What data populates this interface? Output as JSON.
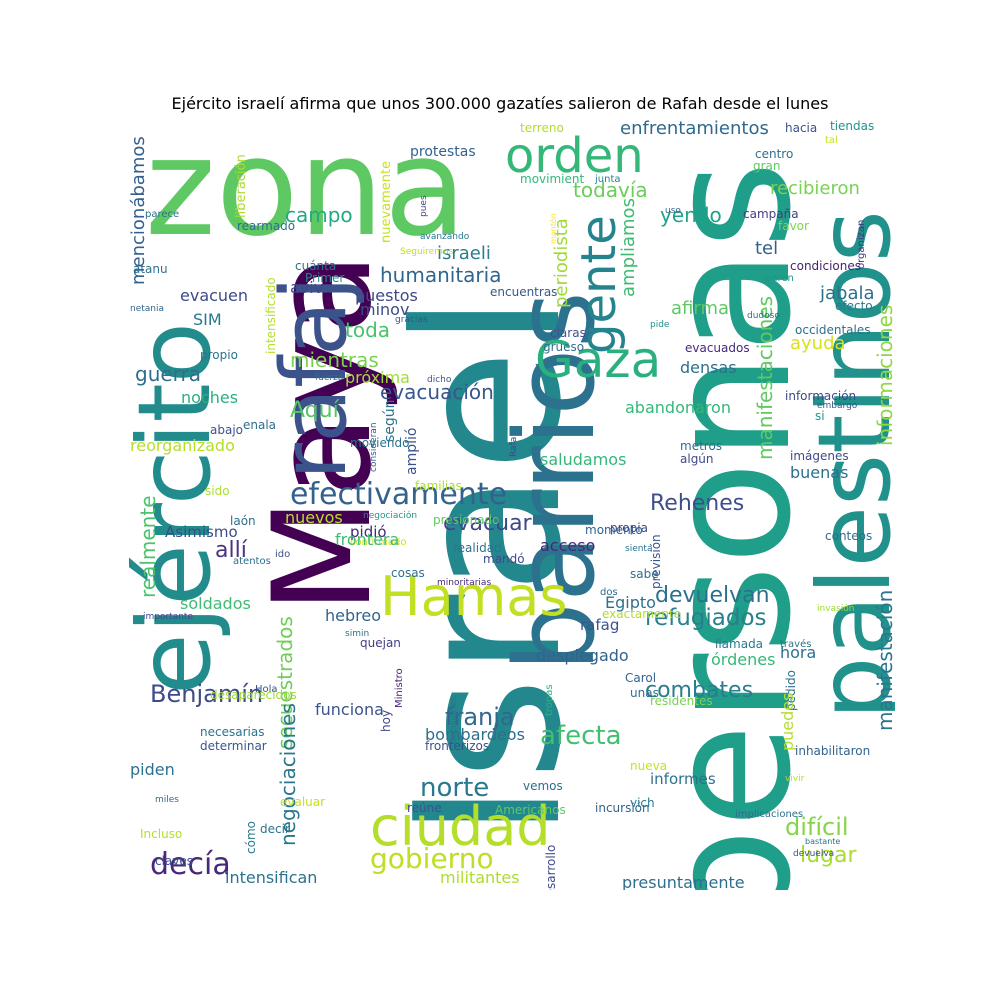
{
  "title": "Ejército israelí afirma que unos 300.000 gazatíes salieron de Rafah desde el lunes",
  "words": [
    {
      "text": "Israel",
      "color": "#23888e"
    },
    {
      "text": "personas",
      "color": "#1f9e89"
    },
    {
      "text": "zona",
      "color": "#5ec962"
    },
    {
      "text": "Maya",
      "color": "#440154"
    },
    {
      "text": "barrios",
      "color": "#2c728e"
    },
    {
      "text": "palestinos",
      "color": "#21918c"
    },
    {
      "text": "ejército",
      "color": "#228c8d"
    },
    {
      "text": "rafaj",
      "color": "#3b528b"
    },
    {
      "text": "ciudad",
      "color": "#b5de2b"
    },
    {
      "text": "Hamas",
      "color": "#c2df23"
    },
    {
      "text": "Gaza",
      "color": "#2ab07f"
    },
    {
      "text": "orden",
      "color": "#35b779"
    },
    {
      "text": "gente",
      "color": "#25838e"
    },
    {
      "text": "efectivamente",
      "color": "#33628d"
    },
    {
      "text": "decía",
      "color": "#482979"
    },
    {
      "text": "gobierno",
      "color": "#bddf26"
    },
    {
      "text": "Benjamín",
      "color": "#3e4a89"
    },
    {
      "text": "afecta",
      "color": "#42be71"
    },
    {
      "text": "norte",
      "color": "#2a788e"
    },
    {
      "text": "franja",
      "color": "#31688e"
    },
    {
      "text": "combates",
      "color": "#287d8e"
    },
    {
      "text": "refugiados",
      "color": "#27808e"
    },
    {
      "text": "devuelvan",
      "color": "#2d708e"
    },
    {
      "text": "Rehenes",
      "color": "#3d4e8a"
    },
    {
      "text": "evacuar",
      "color": "#3f4788"
    },
    {
      "text": "allí",
      "color": "#463480"
    },
    {
      "text": "difícil",
      "color": "#86d549"
    },
    {
      "text": "lugar",
      "color": "#a8db34"
    },
    {
      "text": "Aquí",
      "color": "#54c568"
    },
    {
      "text": "guerra",
      "color": "#2e6e8e"
    },
    {
      "text": "mientras",
      "color": "#7ad151"
    },
    {
      "text": "toda",
      "color": "#4ac16d"
    },
    {
      "text": "evacuación",
      "color": "#39568c"
    },
    {
      "text": "todavía",
      "color": "#6ccd5a"
    },
    {
      "text": "campo",
      "color": "#22a884"
    },
    {
      "text": "humanitaria",
      "color": "#32658e"
    },
    {
      "text": "yendo",
      "color": "#1fa287"
    },
    {
      "text": "israeli",
      "color": "#287c8e"
    },
    {
      "text": "periodista",
      "color": "#a0da39"
    },
    {
      "text": "ampliamos",
      "color": "#3fbc73"
    },
    {
      "text": "manifestaciones",
      "color": "#60ca60"
    },
    {
      "text": "informaciones",
      "color": "#90d743"
    },
    {
      "text": "manifestación",
      "color": "#2b758e"
    },
    {
      "text": "secuestrados",
      "color": "#6ece58"
    },
    {
      "text": "realmente",
      "color": "#4cc26c"
    },
    {
      "text": "mencionábamos",
      "color": "#355f8d"
    },
    {
      "text": "enfrentamientos",
      "color": "#30698e"
    },
    {
      "text": "recibieron",
      "color": "#7ad151"
    },
    {
      "text": "protestas",
      "color": "#33638d"
    },
    {
      "text": "hacia",
      "color": "#3b528b"
    },
    {
      "text": "tiendas",
      "color": "#1f958b"
    },
    {
      "text": "terreno",
      "color": "#b0dd2f"
    },
    {
      "text": "tal",
      "color": "#c8e020"
    },
    {
      "text": "centro",
      "color": "#2e6f8e"
    },
    {
      "text": "gran",
      "color": "#5ec962"
    },
    {
      "text": "movimient",
      "color": "#35b779"
    },
    {
      "text": "junta",
      "color": "#26828e"
    },
    {
      "text": "liberación",
      "color": "#addc30"
    },
    {
      "text": "nuevamente",
      "color": "#c8e020"
    },
    {
      "text": "pues",
      "color": "#3e4989"
    },
    {
      "text": "uso",
      "color": "#31688e"
    },
    {
      "text": "montón",
      "color": "#fde725"
    },
    {
      "text": "parece",
      "color": "#2d708e"
    },
    {
      "text": "campaña",
      "color": "#433e85"
    },
    {
      "text": "favor",
      "color": "#7fd34e"
    },
    {
      "text": "tel",
      "color": "#33638d"
    },
    {
      "text": "jabala",
      "color": "#2c728e"
    },
    {
      "text": "condiciones",
      "color": "#482173"
    },
    {
      "text": "paren",
      "color": "#1f968b"
    },
    {
      "text": "organizan",
      "color": "#463480"
    },
    {
      "text": "efecto",
      "color": "#2a788e"
    },
    {
      "text": "dudoso",
      "color": "#2d708e"
    },
    {
      "text": "occidentales",
      "color": "#2e6e8e"
    },
    {
      "text": "afirma",
      "color": "#5ec962"
    },
    {
      "text": "pide",
      "color": "#21918c"
    },
    {
      "text": "ayuda",
      "color": "#d8e219"
    },
    {
      "text": "información",
      "color": "#3e4989"
    },
    {
      "text": "embargo",
      "color": "#3b528b"
    },
    {
      "text": "si",
      "color": "#1f968b"
    },
    {
      "text": "avanzando",
      "color": "#2a788e"
    },
    {
      "text": "Seguiremos",
      "color": "#bddf26"
    },
    {
      "text": "rearmado",
      "color": "#2d708e"
    },
    {
      "text": "cuánta",
      "color": "#2e6e8e"
    },
    {
      "text": "Primer",
      "color": "#23888e"
    },
    {
      "text": "atanu",
      "color": "#2c728e"
    },
    {
      "text": "intensificado",
      "color": "#b5de2b"
    },
    {
      "text": "netania",
      "color": "#31688e"
    },
    {
      "text": "gracias",
      "color": "#3b528b"
    },
    {
      "text": "evacuen",
      "color": "#3e4a89"
    },
    {
      "text": "aviv",
      "color": "#3e4989"
    },
    {
      "text": "puestos",
      "color": "#3e4989"
    },
    {
      "text": "encuentras",
      "color": "#38588c"
    },
    {
      "text": "minov",
      "color": "#3e4a89"
    },
    {
      "text": "SIM",
      "color": "#2a788e"
    },
    {
      "text": "propio",
      "color": "#2c728e"
    },
    {
      "text": "próxima",
      "color": "#a0da39"
    },
    {
      "text": "fuerza",
      "color": "#2e6e8e"
    },
    {
      "text": "dicho",
      "color": "#39568c"
    },
    {
      "text": "claras",
      "color": "#3b528b"
    },
    {
      "text": "grueso",
      "color": "#2e6e8e"
    },
    {
      "text": "evacuados",
      "color": "#482878"
    },
    {
      "text": "densas",
      "color": "#2d708e"
    },
    {
      "text": "abandonaron",
      "color": "#35b779"
    },
    {
      "text": "noches",
      "color": "#2ab07f"
    },
    {
      "text": "enala",
      "color": "#2e6e8e"
    },
    {
      "text": "abajo",
      "color": "#3b528b"
    },
    {
      "text": "consideran",
      "color": "#38588c"
    },
    {
      "text": "Rafa",
      "color": "#3e4989"
    },
    {
      "text": "según",
      "color": "#2c728e"
    },
    {
      "text": "amplió",
      "color": "#3b528b"
    },
    {
      "text": "reorganizado",
      "color": "#b5de2b"
    },
    {
      "text": "saludamos",
      "color": "#35b779"
    },
    {
      "text": "metros",
      "color": "#2e6e8e"
    },
    {
      "text": "algún",
      "color": "#3e4989"
    },
    {
      "text": "imágenes",
      "color": "#3e4989"
    },
    {
      "text": "buenas",
      "color": "#2d708e"
    },
    {
      "text": "sido",
      "color": "#addc30"
    },
    {
      "text": "moviendo",
      "color": "#2c728e"
    },
    {
      "text": "familias",
      "color": "#addc30"
    },
    {
      "text": "laón",
      "color": "#2e6e8e"
    },
    {
      "text": "nuevos",
      "color": "#b5de2b"
    },
    {
      "text": "negociación",
      "color": "#1f958b"
    },
    {
      "text": "presionado",
      "color": "#5ec962"
    },
    {
      "text": "previsión",
      "color": "#3b528b"
    },
    {
      "text": "Asimismo",
      "color": "#3e4989"
    },
    {
      "text": "pidió",
      "color": "#482878"
    },
    {
      "text": "confirmado",
      "color": "#c8e020"
    },
    {
      "text": "momento",
      "color": "#33638d"
    },
    {
      "text": "propia",
      "color": "#3e4989"
    },
    {
      "text": "conteos",
      "color": "#2e6e8e"
    },
    {
      "text": "acceso",
      "color": "#482878"
    },
    {
      "text": "realidad",
      "color": "#2c728e"
    },
    {
      "text": "frontera",
      "color": "#3fbc73"
    },
    {
      "text": "ido",
      "color": "#3b528b"
    },
    {
      "text": "atentos",
      "color": "#2e6e8e"
    },
    {
      "text": "mandó",
      "color": "#3e4989"
    },
    {
      "text": "sienta",
      "color": "#2c728e"
    },
    {
      "text": "cosas",
      "color": "#2d708e"
    },
    {
      "text": "sabe",
      "color": "#2d708e"
    },
    {
      "text": "minoritarias",
      "color": "#482878"
    },
    {
      "text": "soldados",
      "color": "#3fbc73"
    },
    {
      "text": "Egipto",
      "color": "#2c728e"
    },
    {
      "text": "dos",
      "color": "#2e6e8e"
    },
    {
      "text": "exactamente",
      "color": "#addc30"
    },
    {
      "text": "rafag",
      "color": "#3b528b"
    },
    {
      "text": "invasión",
      "color": "#a0da39"
    },
    {
      "text": "importante",
      "color": "#3e4989"
    },
    {
      "text": "hebreo",
      "color": "#33638d"
    },
    {
      "text": "simin",
      "color": "#2c728e"
    },
    {
      "text": "quejan",
      "color": "#433e85"
    },
    {
      "text": "desplegado",
      "color": "#33638d"
    },
    {
      "text": "llamada",
      "color": "#2a788e"
    },
    {
      "text": "hora",
      "color": "#2e6e8e"
    },
    {
      "text": "órdenes",
      "color": "#35b779"
    },
    {
      "text": "través",
      "color": "#2c728e"
    },
    {
      "text": "Ministro",
      "color": "#482173"
    },
    {
      "text": "Carol",
      "color": "#33638d"
    },
    {
      "text": "residentes",
      "color": "#7ad151"
    },
    {
      "text": "funciona",
      "color": "#3b528b"
    },
    {
      "text": "negociaciones",
      "color": "#2a788e"
    },
    {
      "text": "desaparecidos",
      "color": "#a0da39"
    },
    {
      "text": "Hola",
      "color": "#3b528b"
    },
    {
      "text": "decisiones",
      "color": "#2c728e"
    },
    {
      "text": "tropas",
      "color": "#2ab07f"
    },
    {
      "text": "unas",
      "color": "#2e6e8e"
    },
    {
      "text": "pedido",
      "color": "#2d708e"
    },
    {
      "text": "puedes",
      "color": "#b5de2b"
    },
    {
      "text": "necesarias",
      "color": "#2c728e"
    },
    {
      "text": "determinar",
      "color": "#39568c"
    },
    {
      "text": "bombardeos",
      "color": "#2e6e8e"
    },
    {
      "text": "fronterizos",
      "color": "#3b528b"
    },
    {
      "text": "hoy",
      "color": "#3e4989"
    },
    {
      "text": "inhabilitaron",
      "color": "#33638d"
    },
    {
      "text": "piden",
      "color": "#2c728e"
    },
    {
      "text": "nueva",
      "color": "#c8e020"
    },
    {
      "text": "informes",
      "color": "#2c728e"
    },
    {
      "text": "vivir",
      "color": "#b5de2b"
    },
    {
      "text": "miles",
      "color": "#2e6e8e"
    },
    {
      "text": "evaluar",
      "color": "#c8e020"
    },
    {
      "text": "reúne",
      "color": "#3b528b"
    },
    {
      "text": "Americanos",
      "color": "#5ec962"
    },
    {
      "text": "incursión",
      "color": "#33638d"
    },
    {
      "text": "vemos",
      "color": "#2e6e8e"
    },
    {
      "text": "vich",
      "color": "#2a788e"
    },
    {
      "text": "desarrollo",
      "color": "#3e4989"
    },
    {
      "text": "implicaciones",
      "color": "#2d708e"
    },
    {
      "text": "Incluso",
      "color": "#b5de2b"
    },
    {
      "text": "decir",
      "color": "#2c728e"
    },
    {
      "text": "cómo",
      "color": "#2a788e"
    },
    {
      "text": "bastante",
      "color": "#2c728e"
    },
    {
      "text": "devuelva",
      "color": "#3b528b"
    },
    {
      "text": "claves",
      "color": "#3b528b"
    },
    {
      "text": "intensifican",
      "color": "#2c728e"
    },
    {
      "text": "militantes",
      "color": "#addc30"
    },
    {
      "text": "presuntamente",
      "color": "#2e6e8e"
    }
  ]
}
